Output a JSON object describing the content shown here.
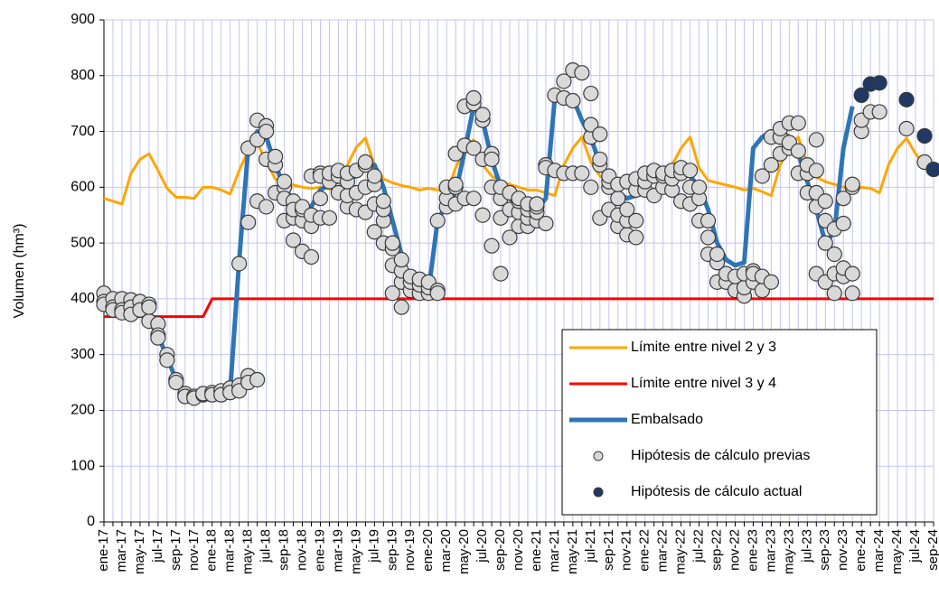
{
  "chart_data": {
    "type": "line",
    "y_label": "Volumen (hm³)",
    "ylim": [
      0,
      900
    ],
    "yticks": [
      0,
      100,
      200,
      300,
      400,
      500,
      600,
      700,
      800,
      900
    ],
    "grid": true,
    "legend": "lower right",
    "categories": [
      "ene-17",
      null,
      "mar-17",
      null,
      "may-17",
      null,
      "jul-17",
      null,
      "sep-17",
      null,
      "nov-17",
      null,
      "ene-18",
      null,
      "mar-18",
      null,
      "may-18",
      null,
      "jul-18",
      null,
      "sep-18",
      null,
      "nov-18",
      null,
      "ene-19",
      null,
      "mar-19",
      null,
      "may-19",
      null,
      "jul-19",
      null,
      "sep-19",
      null,
      "nov-19",
      null,
      "ene-20",
      null,
      "mar-20",
      null,
      "may-20",
      null,
      "jul-20",
      null,
      "sep-20",
      null,
      "nov-20",
      null,
      "ene-21",
      null,
      "mar-21",
      null,
      "may-21",
      null,
      "jul-21",
      null,
      "sep-21",
      null,
      "nov-21",
      null,
      "ene-22",
      null,
      "mar-22",
      null,
      "may-22",
      null,
      "jul-22",
      null,
      "sep-22",
      null,
      "nov-22",
      null,
      "ene-23",
      null,
      "mar-23",
      null,
      "may-23",
      null,
      "jul-23",
      null,
      "sep-23",
      null,
      "nov-23",
      null,
      "ene-24",
      null,
      "mar-24",
      null,
      "may-24",
      null,
      "jul-24",
      null,
      "sep-24"
    ],
    "series": [
      {
        "name": "Límite entre nivel 2 y 3",
        "kind": "line",
        "color": "#ffa500",
        "values": [
          580,
          575,
          570,
          625,
          650,
          660,
          630,
          598,
          582,
          582,
          580,
          600,
          600,
          595,
          588,
          630,
          665,
          680,
          645,
          615,
          608,
          604,
          600,
          598,
          600,
          597,
          592,
          640,
          672,
          688,
          640,
          615,
          608,
          603,
          600,
          595,
          598,
          595,
          590,
          635,
          668,
          685,
          640,
          620,
          610,
          605,
          600,
          595,
          595,
          590,
          585,
          640,
          670,
          690,
          645,
          620,
          610,
          605,
          600,
          598,
          600,
          595,
          590,
          640,
          670,
          690,
          635,
          612,
          608,
          604,
          600,
          595,
          598,
          592,
          585,
          640,
          670,
          690,
          640,
          618,
          610,
          605,
          600,
          598,
          600,
          598,
          590,
          640,
          670,
          688,
          660,
          640,
          625
        ]
      },
      {
        "name": "Límite entre nivel 3 y 4",
        "kind": "line",
        "color": "#ff0000",
        "values": [
          368,
          368,
          368,
          368,
          368,
          368,
          368,
          368,
          368,
          368,
          368,
          368,
          400,
          400,
          400,
          400,
          400,
          400,
          400,
          400,
          400,
          400,
          400,
          400,
          400,
          400,
          400,
          400,
          400,
          400,
          400,
          400,
          400,
          400,
          400,
          400,
          400,
          400,
          400,
          400,
          400,
          400,
          400,
          400,
          400,
          400,
          400,
          400,
          400,
          400,
          400,
          400,
          400,
          400,
          400,
          400,
          400,
          400,
          400,
          400,
          400,
          400,
          400,
          400,
          400,
          400,
          400,
          400,
          400,
          400,
          400,
          400,
          400,
          400,
          400,
          400,
          400,
          400,
          400,
          400,
          400,
          400,
          400,
          400,
          400,
          400,
          400,
          400,
          400,
          400,
          400,
          400,
          400
        ]
      },
      {
        "name": "Embalsado",
        "kind": "line",
        "color": "#2e75b6",
        "values": [
          405,
          395,
          385,
          385,
          380,
          360,
          335,
          295,
          255,
          235,
          225,
          225,
          230,
          230,
          235,
          470,
          670,
          700,
          690,
          640,
          600,
          575,
          555,
          565,
          595,
          605,
          610,
          615,
          620,
          635,
          640,
          600,
          540,
          480,
          430,
          415,
          415,
          540,
          570,
          590,
          665,
          745,
          720,
          650,
          600,
          580,
          565,
          560,
          560,
          580,
          760,
          765,
          760,
          720,
          690,
          640,
          610,
          590,
          580,
          585,
          600,
          615,
          620,
          625,
          625,
          620,
          600,
          560,
          500,
          470,
          460,
          465,
          670,
          690,
          700,
          700,
          690,
          660,
          610,
          560,
          500,
          520,
          670,
          745,
          null,
          null,
          null,
          null,
          null,
          null,
          null,
          null,
          null
        ]
      },
      {
        "name": "Hipótesis de cálculo previas",
        "kind": "scatter",
        "color": "#d9d9d9",
        "values": [
          [
            410,
            395,
            390
          ],
          [
            400,
            385,
            380
          ],
          [
            400,
            380,
            375
          ],
          [
            398,
            385,
            372
          ],
          [
            395,
            380
          ],
          [
            390,
            360,
            385
          ],
          [
            355,
            335,
            330
          ],
          [
            300,
            290
          ],
          [
            255,
            250
          ],
          [
            230,
            225
          ],
          [
            225,
            222
          ],
          [
            228,
            230
          ],
          [
            232,
            228
          ],
          [
            235,
            228
          ],
          [
            240,
            232
          ],
          [
            245,
            235,
            463
          ],
          [
            262,
            250,
            537,
            670
          ],
          [
            255,
            575,
            685,
            720
          ],
          [
            565,
            650,
            710,
            700
          ],
          [
            640,
            590,
            655
          ],
          [
            540,
            600,
            580,
            610
          ],
          [
            505,
            545,
            575,
            560
          ],
          [
            485,
            540,
            560,
            565
          ],
          [
            475,
            530,
            550,
            620
          ],
          [
            545,
            580,
            625,
            620
          ],
          [
            545,
            610,
            625
          ],
          [
            590,
            620,
            630
          ],
          [
            565,
            585,
            610,
            625
          ],
          [
            560,
            590,
            630
          ],
          [
            555,
            600,
            640,
            645
          ],
          [
            520,
            570,
            605,
            620
          ],
          [
            500,
            540,
            560,
            575
          ],
          [
            410,
            460,
            490,
            500
          ],
          [
            385,
            430,
            450,
            470
          ],
          [
            415,
            430,
            440
          ],
          [
            410,
            425,
            435
          ],
          [
            410,
            420,
            430
          ],
          [
            415,
            410,
            540
          ],
          [
            565,
            580,
            600
          ],
          [
            570,
            600,
            605,
            660
          ],
          [
            580,
            675,
            745
          ],
          [
            580,
            670,
            750,
            760
          ],
          [
            550,
            650,
            720,
            730
          ],
          [
            495,
            600,
            660,
            650
          ],
          [
            445,
            545,
            580,
            600
          ],
          [
            510,
            560,
            590
          ],
          [
            530,
            555,
            575,
            580
          ],
          [
            530,
            545,
            560,
            570
          ],
          [
            540,
            555,
            565,
            570
          ],
          [
            535,
            640,
            635
          ],
          [
            630,
            765
          ],
          [
            625,
            760,
            790
          ],
          [
            625,
            755,
            810
          ],
          [
            625,
            805
          ],
          [
            600,
            690,
            712,
            768
          ],
          [
            545,
            640,
            650,
            695
          ],
          [
            560,
            600,
            610,
            620
          ],
          [
            530,
            550,
            580,
            605
          ],
          [
            515,
            540,
            560,
            610
          ],
          [
            510,
            540,
            595,
            615
          ],
          [
            595,
            610,
            625
          ],
          [
            585,
            620,
            630
          ],
          [
            600,
            620,
            625
          ],
          [
            595,
            615,
            630
          ],
          [
            575,
            625,
            635
          ],
          [
            570,
            600,
            630
          ],
          [
            540,
            580,
            600
          ],
          [
            480,
            510,
            540
          ],
          [
            430,
            465,
            480
          ],
          [
            430,
            445
          ],
          [
            415,
            440
          ],
          [
            405,
            420,
            445
          ],
          [
            430,
            450,
            445
          ],
          [
            415,
            440,
            620
          ],
          [
            430,
            640,
            690
          ],
          [
            660,
            690,
            705
          ],
          [
            670,
            715,
            680
          ],
          [
            625,
            665,
            715
          ],
          [
            590,
            625,
            640
          ],
          [
            565,
            590,
            630,
            685,
            445
          ],
          [
            500,
            540,
            575,
            430
          ],
          [
            445,
            480,
            525,
            410
          ],
          [
            440,
            455,
            535,
            580
          ],
          [
            410,
            445,
            600,
            605
          ],
          [
            700,
            720
          ],
          [
            735
          ],
          [
            735
          ],
          null,
          null,
          [
            705
          ],
          null,
          [
            645
          ],
          null
        ]
      },
      {
        "name": "Hipótesis de cálculo actual",
        "kind": "scatter",
        "color": "#1f3864",
        "values": [
          null,
          null,
          null,
          null,
          null,
          null,
          null,
          null,
          null,
          null,
          null,
          null,
          null,
          null,
          null,
          null,
          null,
          null,
          null,
          null,
          null,
          null,
          null,
          null,
          null,
          null,
          null,
          null,
          null,
          null,
          null,
          null,
          null,
          null,
          null,
          null,
          null,
          null,
          null,
          null,
          null,
          null,
          null,
          null,
          null,
          null,
          null,
          null,
          null,
          null,
          null,
          null,
          null,
          null,
          null,
          null,
          null,
          null,
          null,
          null,
          null,
          null,
          null,
          null,
          null,
          null,
          null,
          null,
          null,
          null,
          null,
          null,
          null,
          null,
          null,
          null,
          null,
          null,
          null,
          null,
          null,
          null,
          null,
          null,
          [
            765
          ],
          [
            785
          ],
          [
            787
          ],
          null,
          null,
          [
            757
          ],
          null,
          [
            692
          ],
          [
            632
          ]
        ]
      }
    ]
  }
}
